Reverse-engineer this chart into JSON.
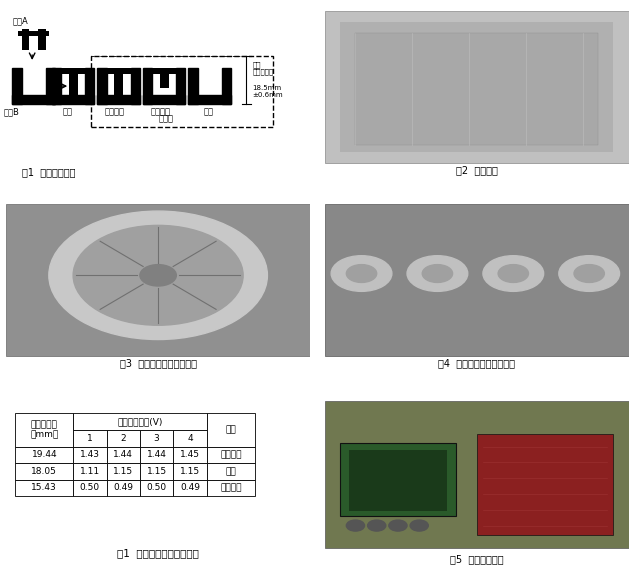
{
  "bg_color": "#ffffff",
  "fig1_caption": "図1  樹脂成型部品",
  "fig2_caption": "図2  課題装置",
  "fig3_caption": "図3  パーツフィーダボウル",
  "fig4_caption": "図4  試作品パーツフィーダ",
  "fig5_caption": "図5  データ管理部",
  "table_title": "表1  差動トランス検査結果",
  "table_header_row1": [
    "パーツ高さ",
    "差動トランス(V)",
    "",
    "",
    "",
    "備考"
  ],
  "table_header_row2": [
    "（mm）",
    "1",
    "2",
    "3",
    "4",
    ""
  ],
  "table_data": [
    [
      "19.44",
      "1.43",
      "1.44",
      "1.44",
      "1.45",
      "入り不良"
    ],
    [
      "18.05",
      "1.11",
      "1.15",
      "1.15",
      "1.15",
      "良品"
    ],
    [
      "15.43",
      "0.50",
      "0.49",
      "0.50",
      "0.49",
      "入りすぎ"
    ]
  ],
  "diagram_caption_fig1_sub": "図1  樹脂成型部品",
  "diagram_labels": [
    "部品B",
    "良品",
    "入りすぎ",
    "入り不良",
    "欠品"
  ],
  "furyohin_label": "不良品",
  "kijun_label": "基準\nとなる高さ",
  "size_label": "18.5mm\n±0.6mm",
  "buhin_a_label": "部品A",
  "buhin_b_label": "部品B"
}
